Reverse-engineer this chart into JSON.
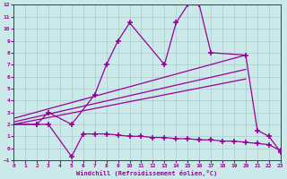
{
  "xlabel": "Windchill (Refroidissement éolien,°C)",
  "background_color": "#cbe9e9",
  "grid_color": "#aacccc",
  "line_color": "#990099",
  "xlim": [
    0,
    23
  ],
  "ylim": [
    -1,
    12
  ],
  "xticks": [
    0,
    1,
    2,
    3,
    4,
    5,
    6,
    7,
    8,
    9,
    10,
    11,
    12,
    13,
    14,
    15,
    16,
    17,
    18,
    19,
    20,
    21,
    22,
    23
  ],
  "yticks": [
    -1,
    0,
    1,
    2,
    3,
    4,
    5,
    6,
    7,
    8,
    9,
    10,
    11,
    12
  ],
  "line1_x": [
    0,
    2,
    3,
    5,
    6,
    7,
    8,
    9,
    10,
    11,
    12,
    13,
    14,
    15,
    16,
    17,
    18,
    19,
    20,
    21,
    22,
    23
  ],
  "line1_y": [
    2,
    2,
    2,
    -0.7,
    1.2,
    1.2,
    1.2,
    1.1,
    1.0,
    1.0,
    0.9,
    0.9,
    0.8,
    0.8,
    0.7,
    0.7,
    0.6,
    0.6,
    0.5,
    0.4,
    0.3,
    -0.2
  ],
  "line2_x": [
    0,
    2,
    3,
    5,
    7,
    8,
    9,
    10,
    13,
    14,
    15,
    16,
    17,
    20,
    21,
    22,
    23
  ],
  "line2_y": [
    2,
    2,
    3,
    2,
    4.5,
    7,
    9.0,
    10.5,
    7.0,
    10.5,
    12,
    12,
    8,
    7.8,
    1.5,
    1.0,
    -0.3
  ],
  "line3_x": [
    0,
    20
  ],
  "line3_y": [
    2.5,
    7.8
  ],
  "line4_x": [
    0,
    20
  ],
  "line4_y": [
    2.2,
    6.6
  ],
  "line5_x": [
    0,
    20
  ],
  "line5_y": [
    2.0,
    5.8
  ]
}
